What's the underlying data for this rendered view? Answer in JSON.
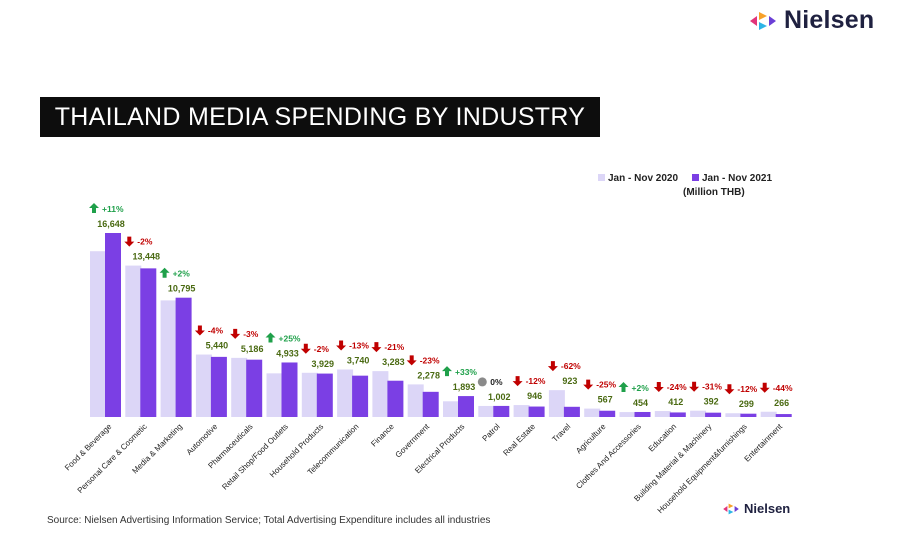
{
  "logo": {
    "brand": "Nielsen"
  },
  "title": "THAILAND MEDIA SPENDING BY INDUSTRY",
  "source": "Source: Nielsen Advertising Information Service; Total Advertising Expenditure includes all industries",
  "colors": {
    "series_2020": "#dcd6f7",
    "series_2021": "#7b3fe4",
    "up": "#1fa04a",
    "down": "#c00000",
    "neutral": "#8a8a8a",
    "value_label": "#4a6a12"
  },
  "chart_data": {
    "type": "bar",
    "categories": [
      "Food & Beverage",
      "Personal Care & Cosmetic",
      "Media & Marketing",
      "Automotive",
      "Pharmaceuticals",
      "Retail Shop/Food Outlets",
      "Household Products",
      "Telecommunication",
      "Finance",
      "Government",
      "Electrical Products",
      "Patrol",
      "Real Estate",
      "Travel",
      "Agriculture",
      "Clothes And Accessories",
      "Education",
      "Building Material & Machinery",
      "Household Equipment&furnishings",
      "Entertainment"
    ],
    "series": [
      {
        "name": "Jan - Nov 2020",
        "values": [
          15000,
          13700,
          10550,
          5650,
          5350,
          3950,
          4000,
          4300,
          4150,
          2950,
          1420,
          1000,
          1080,
          2430,
          760,
          445,
          540,
          570,
          340,
          475
        ]
      },
      {
        "name": "Jan - Nov 2021",
        "values": [
          16648,
          13448,
          10795,
          5440,
          5186,
          4933,
          3929,
          3740,
          3283,
          2278,
          1893,
          1002,
          946,
          923,
          567,
          454,
          412,
          392,
          299,
          266
        ]
      }
    ],
    "value_labels": [
      "16,648",
      "13,448",
      "10,795",
      "5,440",
      "5,186",
      "4,933",
      "3,929",
      "3,740",
      "3,283",
      "2,278",
      "1,893",
      "1,002",
      "946",
      "923",
      "567",
      "454",
      "412",
      "392",
      "299",
      "266"
    ],
    "changes": [
      "+11%",
      "-2%",
      "+2%",
      "-4%",
      "-3%",
      "+25%",
      "-2%",
      "-13%",
      "-21%",
      "-23%",
      "+33%",
      "0%",
      "-12%",
      "-62%",
      "-25%",
      "+2%",
      "-24%",
      "-31%",
      "-12%",
      "-44%"
    ],
    "change_dirs": [
      "up",
      "down",
      "up",
      "down",
      "down",
      "up",
      "down",
      "down",
      "down",
      "down",
      "up",
      "neutral",
      "down",
      "down",
      "down",
      "up",
      "down",
      "down",
      "down",
      "down"
    ],
    "legend_note": "(Million THB)",
    "legend_position": "top-right",
    "ylim": [
      0,
      17000
    ],
    "grid": false
  }
}
